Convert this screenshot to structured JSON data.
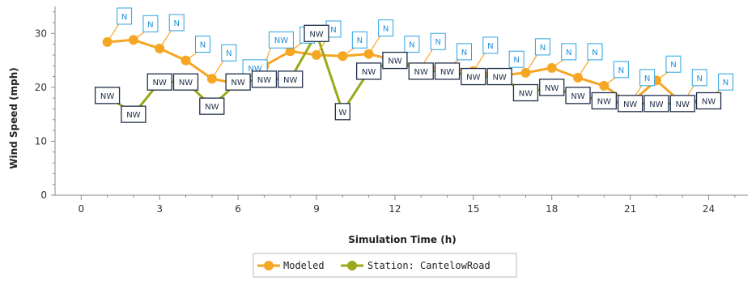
{
  "chart_data": {
    "type": "line",
    "xlabel": "Simulation Time (h)",
    "ylabel": "Wind Speed (mph)",
    "xlim": [
      -1,
      25.5
    ],
    "ylim": [
      0,
      35
    ],
    "xticks": [
      0,
      3,
      6,
      9,
      12,
      15,
      18,
      21,
      24
    ],
    "yticks": [
      0,
      10,
      20,
      30
    ],
    "grid": false,
    "legend_placement": "bottom-center",
    "series": [
      {
        "name": "Modeled",
        "color": "#f5a623",
        "marker": "circle",
        "label_border_color": "#29a3e0",
        "label_text_color": "#1e90d8",
        "points": [
          {
            "x": 1,
            "y": 28.4,
            "direction": "N"
          },
          {
            "x": 2,
            "y": 28.8,
            "direction": "N"
          },
          {
            "x": 3,
            "y": 27.2,
            "direction": "N"
          },
          {
            "x": 4,
            "y": 25.0,
            "direction": "N"
          },
          {
            "x": 5,
            "y": 21.6,
            "direction": "N"
          },
          {
            "x": 6,
            "y": 20.6,
            "direction": "NW"
          },
          {
            "x": 7,
            "y": 24.0,
            "direction": "NW"
          },
          {
            "x": 8,
            "y": 26.7,
            "direction": "N"
          },
          {
            "x": 9,
            "y": 26.0,
            "direction": "N"
          },
          {
            "x": 10,
            "y": 25.8,
            "direction": "N"
          },
          {
            "x": 11,
            "y": 26.2,
            "direction": "N"
          },
          {
            "x": 12,
            "y": 25.0,
            "direction": "N"
          },
          {
            "x": 13,
            "y": 23.7,
            "direction": "N"
          },
          {
            "x": 14,
            "y": 23.6,
            "direction": "N"
          },
          {
            "x": 15,
            "y": 23.0,
            "direction": "N"
          },
          {
            "x": 16,
            "y": 22.2,
            "direction": "N"
          },
          {
            "x": 17,
            "y": 22.7,
            "direction": "N"
          },
          {
            "x": 18,
            "y": 23.6,
            "direction": "N"
          },
          {
            "x": 19,
            "y": 21.8,
            "direction": "N"
          },
          {
            "x": 20,
            "y": 20.3,
            "direction": "N"
          },
          {
            "x": 21,
            "y": 17.0,
            "direction": "N"
          },
          {
            "x": 22,
            "y": 21.3,
            "direction": "N"
          },
          {
            "x": 23,
            "y": 17.0,
            "direction": "N"
          },
          {
            "x": 24,
            "y": 18.0,
            "direction": "N"
          }
        ]
      },
      {
        "name": "Station: CantelowRoad",
        "color": "#9aa81c",
        "marker": "circle",
        "label_border_color": "#1f2e4a",
        "label_text_color": "#1f2e4a",
        "points": [
          {
            "x": 1,
            "y": 18.5,
            "direction": "NW"
          },
          {
            "x": 2,
            "y": 15.0,
            "direction": "NW"
          },
          {
            "x": 3,
            "y": 21.0,
            "direction": "NW"
          },
          {
            "x": 4,
            "y": 21.0,
            "direction": "NW"
          },
          {
            "x": 5,
            "y": 16.5,
            "direction": "NW"
          },
          {
            "x": 6,
            "y": 21.0,
            "direction": "NW"
          },
          {
            "x": 7,
            "y": 21.5,
            "direction": "NW"
          },
          {
            "x": 8,
            "y": 21.5,
            "direction": "NW"
          },
          {
            "x": 9,
            "y": 30.0,
            "direction": "NW"
          },
          {
            "x": 10,
            "y": 15.5,
            "direction": "W"
          },
          {
            "x": 11,
            "y": 23.0,
            "direction": "NW"
          },
          {
            "x": 12,
            "y": 25.0,
            "direction": "NW"
          },
          {
            "x": 13,
            "y": 23.0,
            "direction": "NW"
          },
          {
            "x": 14,
            "y": 23.0,
            "direction": "NW"
          },
          {
            "x": 15,
            "y": 22.0,
            "direction": "NW"
          },
          {
            "x": 16,
            "y": 22.0,
            "direction": "NW"
          },
          {
            "x": 17,
            "y": 19.0,
            "direction": "NW"
          },
          {
            "x": 18,
            "y": 20.0,
            "direction": "NW"
          },
          {
            "x": 19,
            "y": 18.5,
            "direction": "NW"
          },
          {
            "x": 20,
            "y": 17.5,
            "direction": "NW"
          },
          {
            "x": 21,
            "y": 17.0,
            "direction": "NW"
          },
          {
            "x": 22,
            "y": 17.0,
            "direction": "NW"
          },
          {
            "x": 23,
            "y": 17.0,
            "direction": "NW"
          },
          {
            "x": 24,
            "y": 17.5,
            "direction": "NW"
          }
        ]
      }
    ]
  }
}
